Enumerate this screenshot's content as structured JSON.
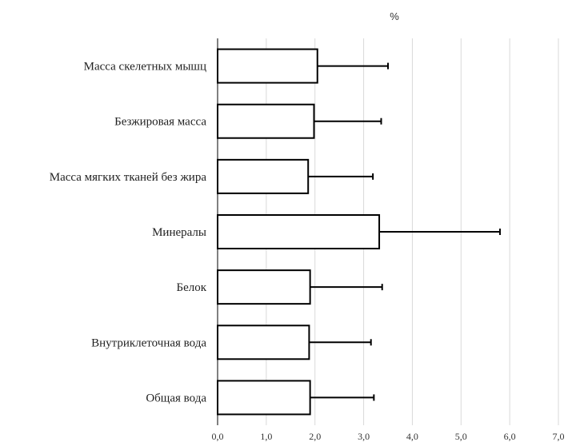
{
  "chart_data": {
    "type": "bar",
    "orientation": "horizontal",
    "title": "",
    "unit_label": "%",
    "xlabel": "",
    "ylabel": "",
    "xlim": [
      0,
      7
    ],
    "x_ticks": [
      0,
      1,
      2,
      3,
      4,
      5,
      6,
      7
    ],
    "x_tick_labels": [
      "0,0",
      "1,0",
      "2,0",
      "3,0",
      "4,0",
      "5,0",
      "6,0",
      "7,0"
    ],
    "grid": "vertical",
    "categories": [
      "Масса скелетных мышц",
      "Безжировая масса",
      "Масса мягких тканей без жира",
      "Минералы",
      "Белок",
      "Внутриклеточная вода",
      "Общая вода"
    ],
    "values": [
      2.05,
      1.98,
      1.86,
      3.32,
      1.9,
      1.88,
      1.9
    ],
    "error_upper": [
      1.45,
      1.38,
      1.33,
      2.48,
      1.48,
      1.27,
      1.31
    ],
    "colors": {
      "bar_fill": "#ffffff",
      "bar_stroke": "#000000",
      "grid": "#d9d9d9",
      "axis": "#000000"
    }
  }
}
